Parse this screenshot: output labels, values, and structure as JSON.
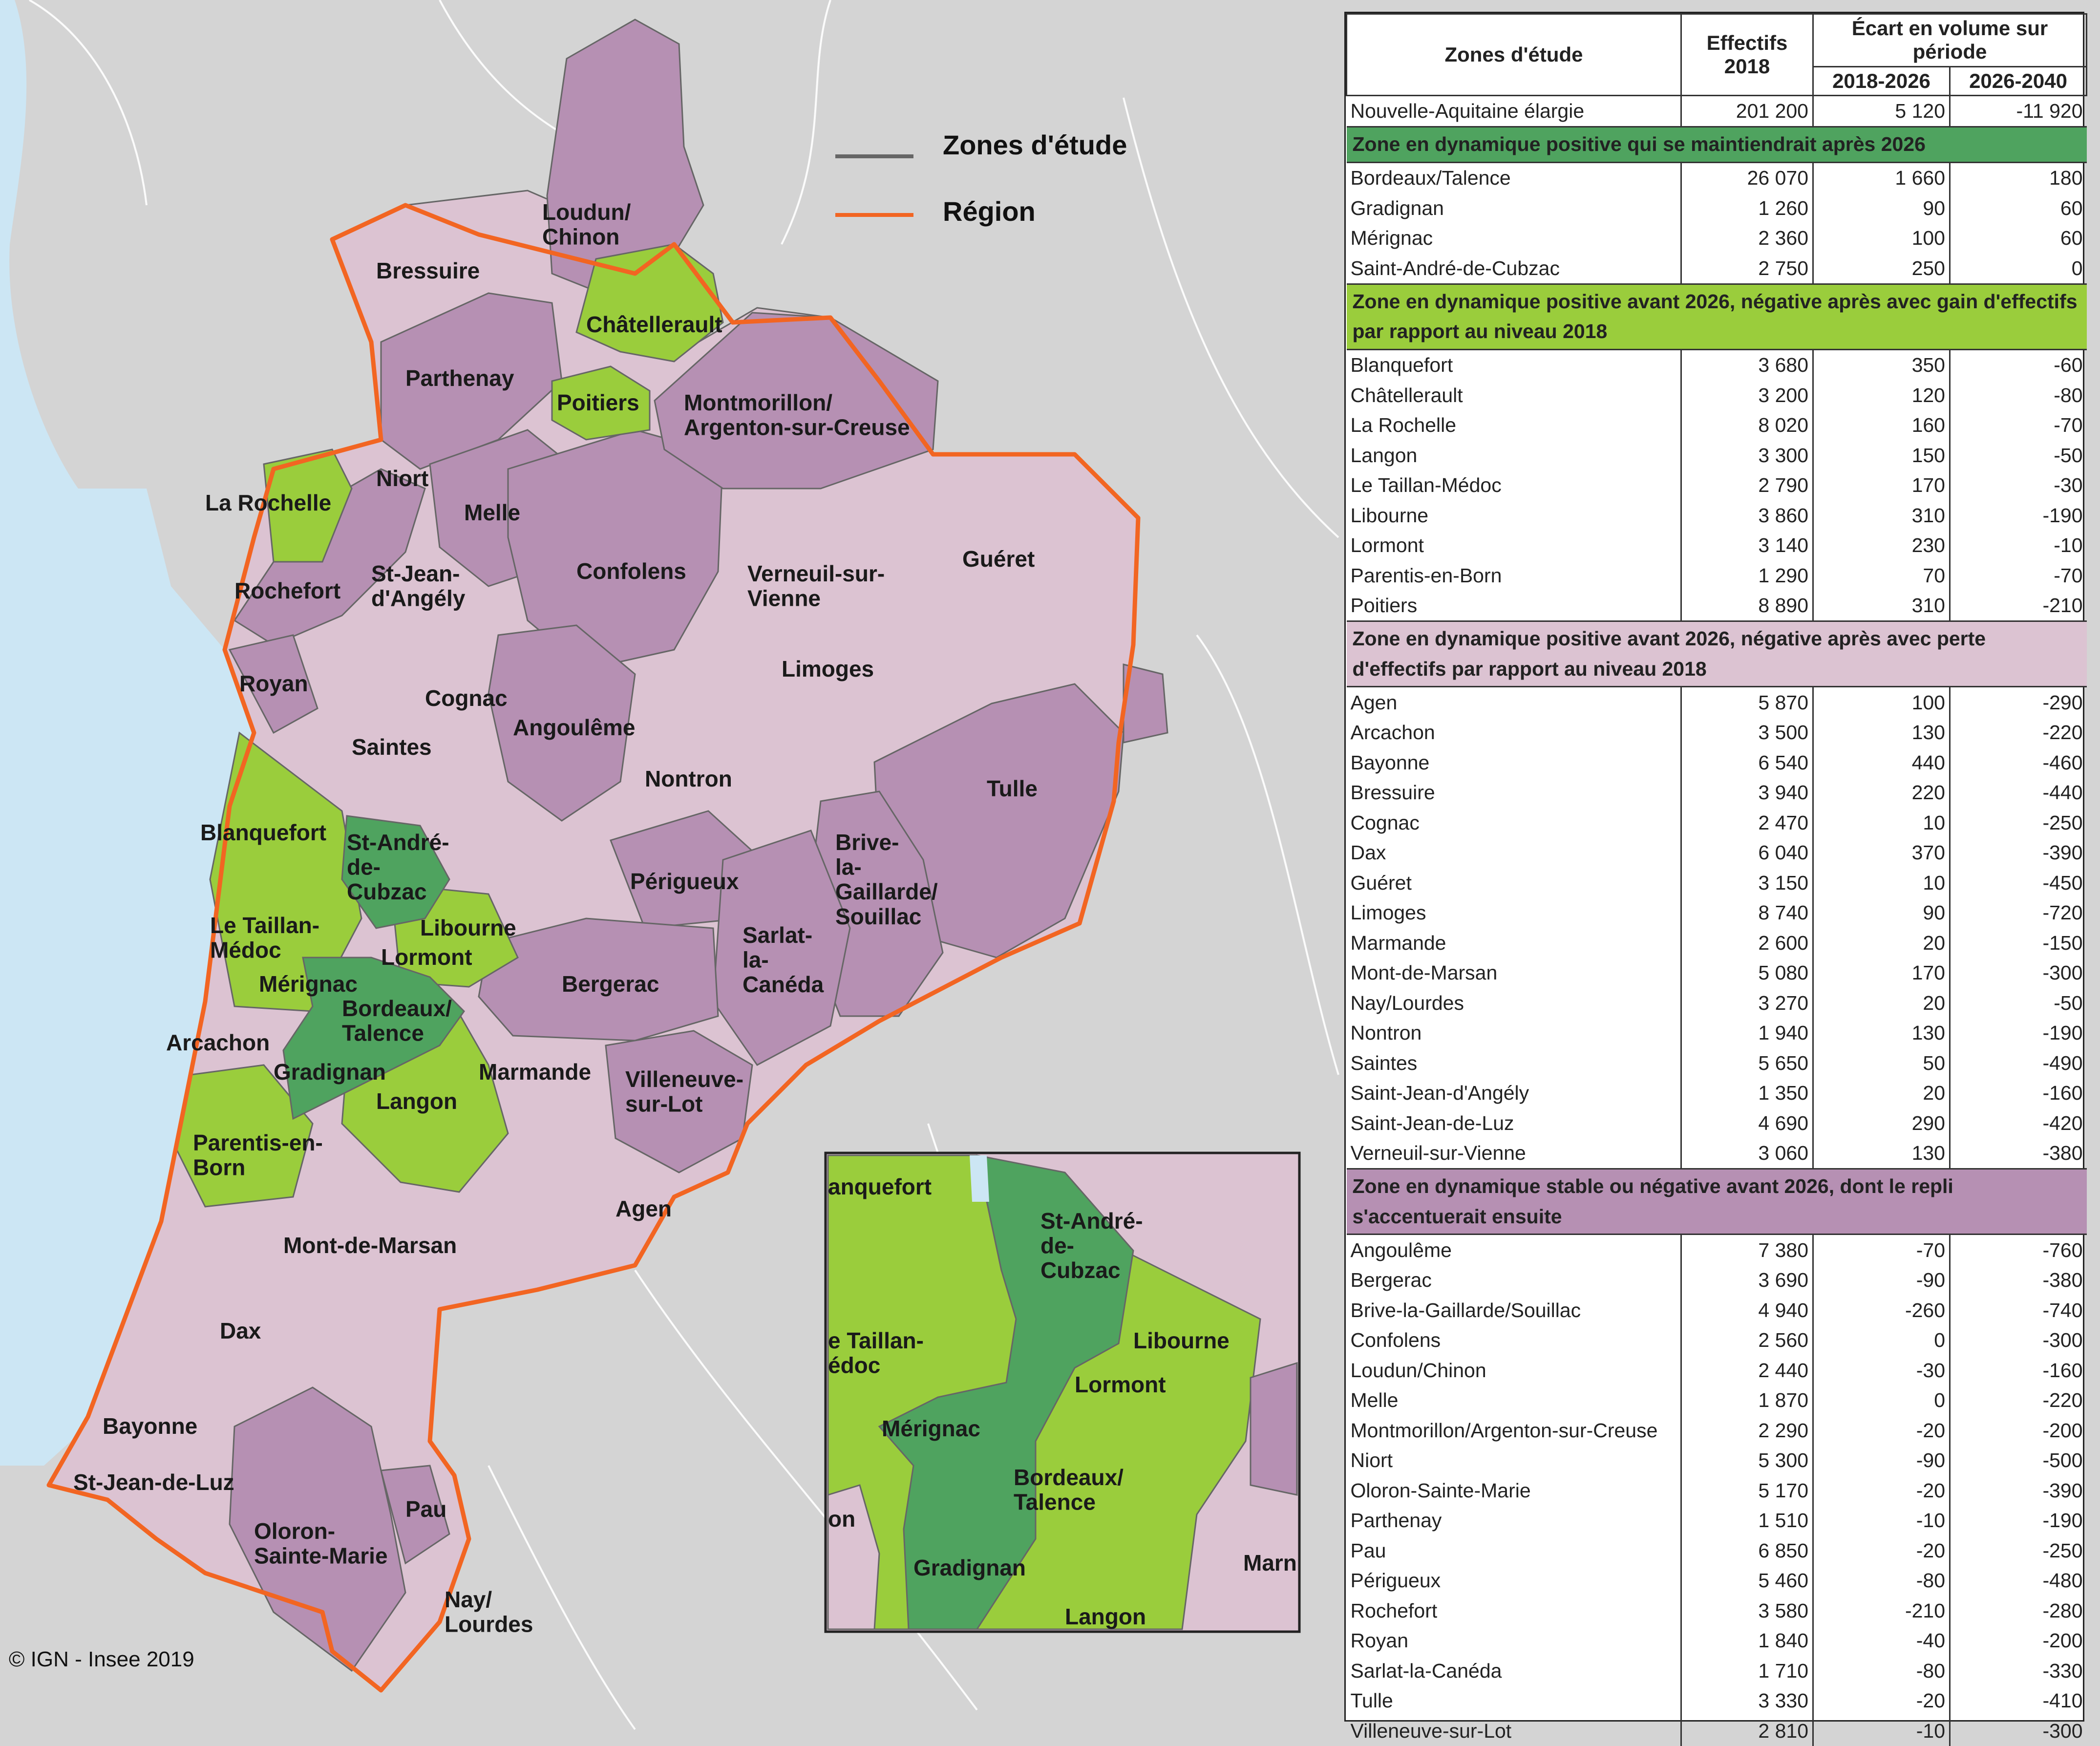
{
  "legend": {
    "zones_label": "Zones d'étude",
    "region_label": "Région",
    "zones_color": "#666666",
    "region_color": "#f26522"
  },
  "copyright": "© IGN - Insee 2019",
  "colors": {
    "dark_green": "#4fa35f",
    "light_green": "#9acd3c",
    "pink": "#dcc3d2",
    "purple": "#b690b3",
    "sea": "#cce6f4",
    "land_outside": "#d4d4d4"
  },
  "map_labels": {
    "loudun": "Loudun/ Chinon",
    "bressuire": "Bressuire",
    "chatellerault": "Châtellerault",
    "parthenay": "Parthenay",
    "poitiers": "Poitiers",
    "montmorillon": "Montmorillon/ Argenton-sur-Creuse",
    "niort": "Niort",
    "larochelle": "La Rochelle",
    "melle": "Melle",
    "rochefort": "Rochefort",
    "stjean_angely": "St-Jean- d'Angély",
    "confolens": "Confolens",
    "verneuil": "Verneuil-sur- Vienne",
    "gueret": "Guéret",
    "limoges": "Limoges",
    "royan": "Royan",
    "cognac": "Cognac",
    "saintes": "Saintes",
    "angouleme": "Angoulême",
    "nontron": "Nontron",
    "tulle": "Tulle",
    "blanquefort": "Blanquefort",
    "st_andre": "St-André- de- Cubzac",
    "libourne": "Libourne",
    "taillan": "Le Taillan- Médoc",
    "lormont": "Lormont",
    "merignac": "Mérignac",
    "bordeaux": "Bordeaux/ Talence",
    "arcachon": "Arcachon",
    "gradignan": "Gradignan",
    "perigueux": "Périgueux",
    "brive": "Brive- la- Gaillarde/ Souillac",
    "sarlat": "Sarlat- la- Canéda",
    "bergerac": "Bergerac",
    "marmande": "Marmande",
    "langon": "Langon",
    "villeneuve": "Villeneuve- sur-Lot",
    "parentis": "Parentis-en- Born",
    "agen": "Agen",
    "montdemarsan": "Mont-de-Marsan",
    "dax": "Dax",
    "bayonne": "Bayonne",
    "stjeandeluz": "St-Jean-de-Luz",
    "pau": "Pau",
    "oloron": "Oloron- Sainte-Marie",
    "nay": "Nay/ Lourdes"
  },
  "inset_labels": {
    "blanquefort": "anquefort",
    "st_andre": "St-André- de- Cubzac",
    "libourne": "Libourne",
    "taillan": "e Taillan- édoc",
    "lormont": "Lormont",
    "merignac": "Mérignac",
    "bordeaux": "Bordeaux/ Talence",
    "gradignan": "Gradignan",
    "langon": "Langon",
    "marmande": "Marn",
    "arcachon": "on"
  },
  "table": {
    "headers": {
      "zones": "Zones d'étude",
      "effectifs": "Effectifs 2018",
      "ecart": "Écart en volume sur période",
      "p1": "2018-2026",
      "p2": "2026-2040"
    },
    "total": {
      "name": "Nouvelle-Aquitaine élargie",
      "eff": "201 200",
      "v1": "5 120",
      "v2": "-11 920"
    },
    "groups": [
      {
        "title": "Zone en dynamique positive qui se maintiendrait après 2026",
        "color": "#4fa35f",
        "rows": [
          {
            "name": "Bordeaux/Talence",
            "eff": "26 070",
            "v1": "1 660",
            "v2": "180"
          },
          {
            "name": "Gradignan",
            "eff": "1 260",
            "v1": "90",
            "v2": "60"
          },
          {
            "name": "Mérignac",
            "eff": "2 360",
            "v1": "100",
            "v2": "60"
          },
          {
            "name": "Saint-André-de-Cubzac",
            "eff": "2 750",
            "v1": "250",
            "v2": "0"
          }
        ]
      },
      {
        "title": "Zone en dynamique positive avant 2026, négative après avec gain d'effectifs par rapport au niveau 2018",
        "color": "#9acd3c",
        "rows": [
          {
            "name": "Blanquefort",
            "eff": "3 680",
            "v1": "350",
            "v2": "-60"
          },
          {
            "name": "Châtellerault",
            "eff": "3 200",
            "v1": "120",
            "v2": "-80"
          },
          {
            "name": "La Rochelle",
            "eff": "8 020",
            "v1": "160",
            "v2": "-70"
          },
          {
            "name": "Langon",
            "eff": "3 300",
            "v1": "150",
            "v2": "-50"
          },
          {
            "name": "Le Taillan-Médoc",
            "eff": "2 790",
            "v1": "170",
            "v2": "-30"
          },
          {
            "name": "Libourne",
            "eff": "3 860",
            "v1": "310",
            "v2": "-190"
          },
          {
            "name": "Lormont",
            "eff": "3 140",
            "v1": "230",
            "v2": "-10"
          },
          {
            "name": "Parentis-en-Born",
            "eff": "1 290",
            "v1": "70",
            "v2": "-70"
          },
          {
            "name": "Poitiers",
            "eff": "8 890",
            "v1": "310",
            "v2": "-210"
          }
        ]
      },
      {
        "title": "Zone en dynamique positive avant 2026, négative après avec perte d'effectifs par rapport au niveau 2018",
        "color": "#dcc3d2",
        "rows": [
          {
            "name": "Agen",
            "eff": "5 870",
            "v1": "100",
            "v2": "-290"
          },
          {
            "name": "Arcachon",
            "eff": "3 500",
            "v1": "130",
            "v2": "-220"
          },
          {
            "name": "Bayonne",
            "eff": "6 540",
            "v1": "440",
            "v2": "-460"
          },
          {
            "name": "Bressuire",
            "eff": "3 940",
            "v1": "220",
            "v2": "-440"
          },
          {
            "name": "Cognac",
            "eff": "2 470",
            "v1": "10",
            "v2": "-250"
          },
          {
            "name": "Dax",
            "eff": "6 040",
            "v1": "370",
            "v2": "-390"
          },
          {
            "name": "Guéret",
            "eff": "3 150",
            "v1": "10",
            "v2": "-450"
          },
          {
            "name": "Limoges",
            "eff": "8 740",
            "v1": "90",
            "v2": "-720"
          },
          {
            "name": "Marmande",
            "eff": "2 600",
            "v1": "20",
            "v2": "-150"
          },
          {
            "name": "Mont-de-Marsan",
            "eff": "5 080",
            "v1": "170",
            "v2": "-300"
          },
          {
            "name": "Nay/Lourdes",
            "eff": "3 270",
            "v1": "20",
            "v2": "-50"
          },
          {
            "name": "Nontron",
            "eff": "1 940",
            "v1": "130",
            "v2": "-190"
          },
          {
            "name": "Saintes",
            "eff": "5 650",
            "v1": "50",
            "v2": "-490"
          },
          {
            "name": "Saint-Jean-d'Angély",
            "eff": "1 350",
            "v1": "20",
            "v2": "-160"
          },
          {
            "name": "Saint-Jean-de-Luz",
            "eff": "4 690",
            "v1": "290",
            "v2": "-420"
          },
          {
            "name": "Verneuil-sur-Vienne",
            "eff": "3 060",
            "v1": "130",
            "v2": "-380"
          }
        ]
      },
      {
        "title": "Zone en dynamique stable ou négative avant 2026, dont le repli s'accentuerait ensuite",
        "color": "#b690b3",
        "rows": [
          {
            "name": "Angoulême",
            "eff": "7 380",
            "v1": "-70",
            "v2": "-760"
          },
          {
            "name": "Bergerac",
            "eff": "3 690",
            "v1": "-90",
            "v2": "-380"
          },
          {
            "name": "Brive-la-Gaillarde/Souillac",
            "eff": "4 940",
            "v1": "-260",
            "v2": "-740"
          },
          {
            "name": "Confolens",
            "eff": "2 560",
            "v1": "0",
            "v2": "-300"
          },
          {
            "name": "Loudun/Chinon",
            "eff": "2 440",
            "v1": "-30",
            "v2": "-160"
          },
          {
            "name": "Melle",
            "eff": "1 870",
            "v1": "0",
            "v2": "-220"
          },
          {
            "name": "Montmorillon/Argenton-sur-Creuse",
            "eff": "2 290",
            "v1": "-20",
            "v2": "-200"
          },
          {
            "name": "Niort",
            "eff": "5 300",
            "v1": "-90",
            "v2": "-500"
          },
          {
            "name": "Oloron-Sainte-Marie",
            "eff": "5 170",
            "v1": "-20",
            "v2": "-390"
          },
          {
            "name": "Parthenay",
            "eff": "1 510",
            "v1": "-10",
            "v2": "-190"
          },
          {
            "name": "Pau",
            "eff": "6 850",
            "v1": "-20",
            "v2": "-250"
          },
          {
            "name": "Périgueux",
            "eff": "5 460",
            "v1": "-80",
            "v2": "-480"
          },
          {
            "name": "Rochefort",
            "eff": "3 580",
            "v1": "-210",
            "v2": "-280"
          },
          {
            "name": "Royan",
            "eff": "1 840",
            "v1": "-40",
            "v2": "-200"
          },
          {
            "name": "Sarlat-la-Canéda",
            "eff": "1 710",
            "v1": "-80",
            "v2": "-330"
          },
          {
            "name": "Tulle",
            "eff": "3 330",
            "v1": "-20",
            "v2": "-410"
          },
          {
            "name": "Villeneuve-sur-Lot",
            "eff": "2 810",
            "v1": "-10",
            "v2": "-300"
          }
        ]
      }
    ]
  }
}
